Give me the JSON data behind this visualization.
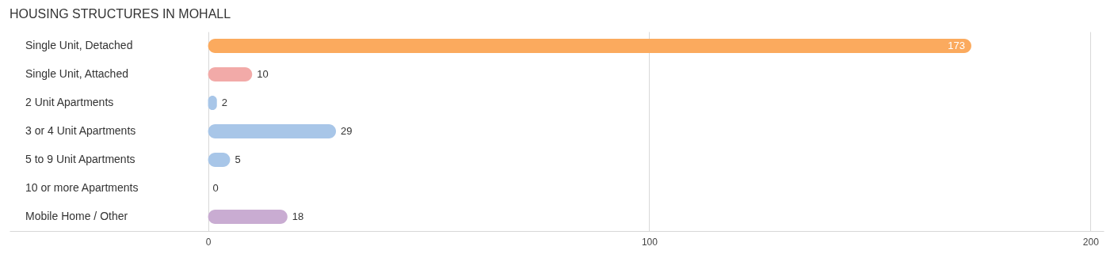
{
  "chart_data": {
    "type": "bar",
    "orientation": "horizontal",
    "title": "HOUSING STRUCTURES IN MOHALL",
    "categories": [
      "Single Unit, Detached",
      "Single Unit, Attached",
      "2 Unit Apartments",
      "3 or 4 Unit Apartments",
      "5 to 9 Unit Apartments",
      "10 or more Apartments",
      "Mobile Home / Other"
    ],
    "values": [
      173,
      10,
      2,
      29,
      5,
      0,
      18
    ],
    "colors": [
      "#fbaa5e",
      "#f2aaa8",
      "#a8c6e8",
      "#a8c6e8",
      "#a8c6e8",
      "#a8c6e8",
      "#c9acd2"
    ],
    "xlim": [
      -45,
      203
    ],
    "xticks": [
      0,
      100,
      200
    ],
    "grid": "x",
    "data_labels": true
  }
}
